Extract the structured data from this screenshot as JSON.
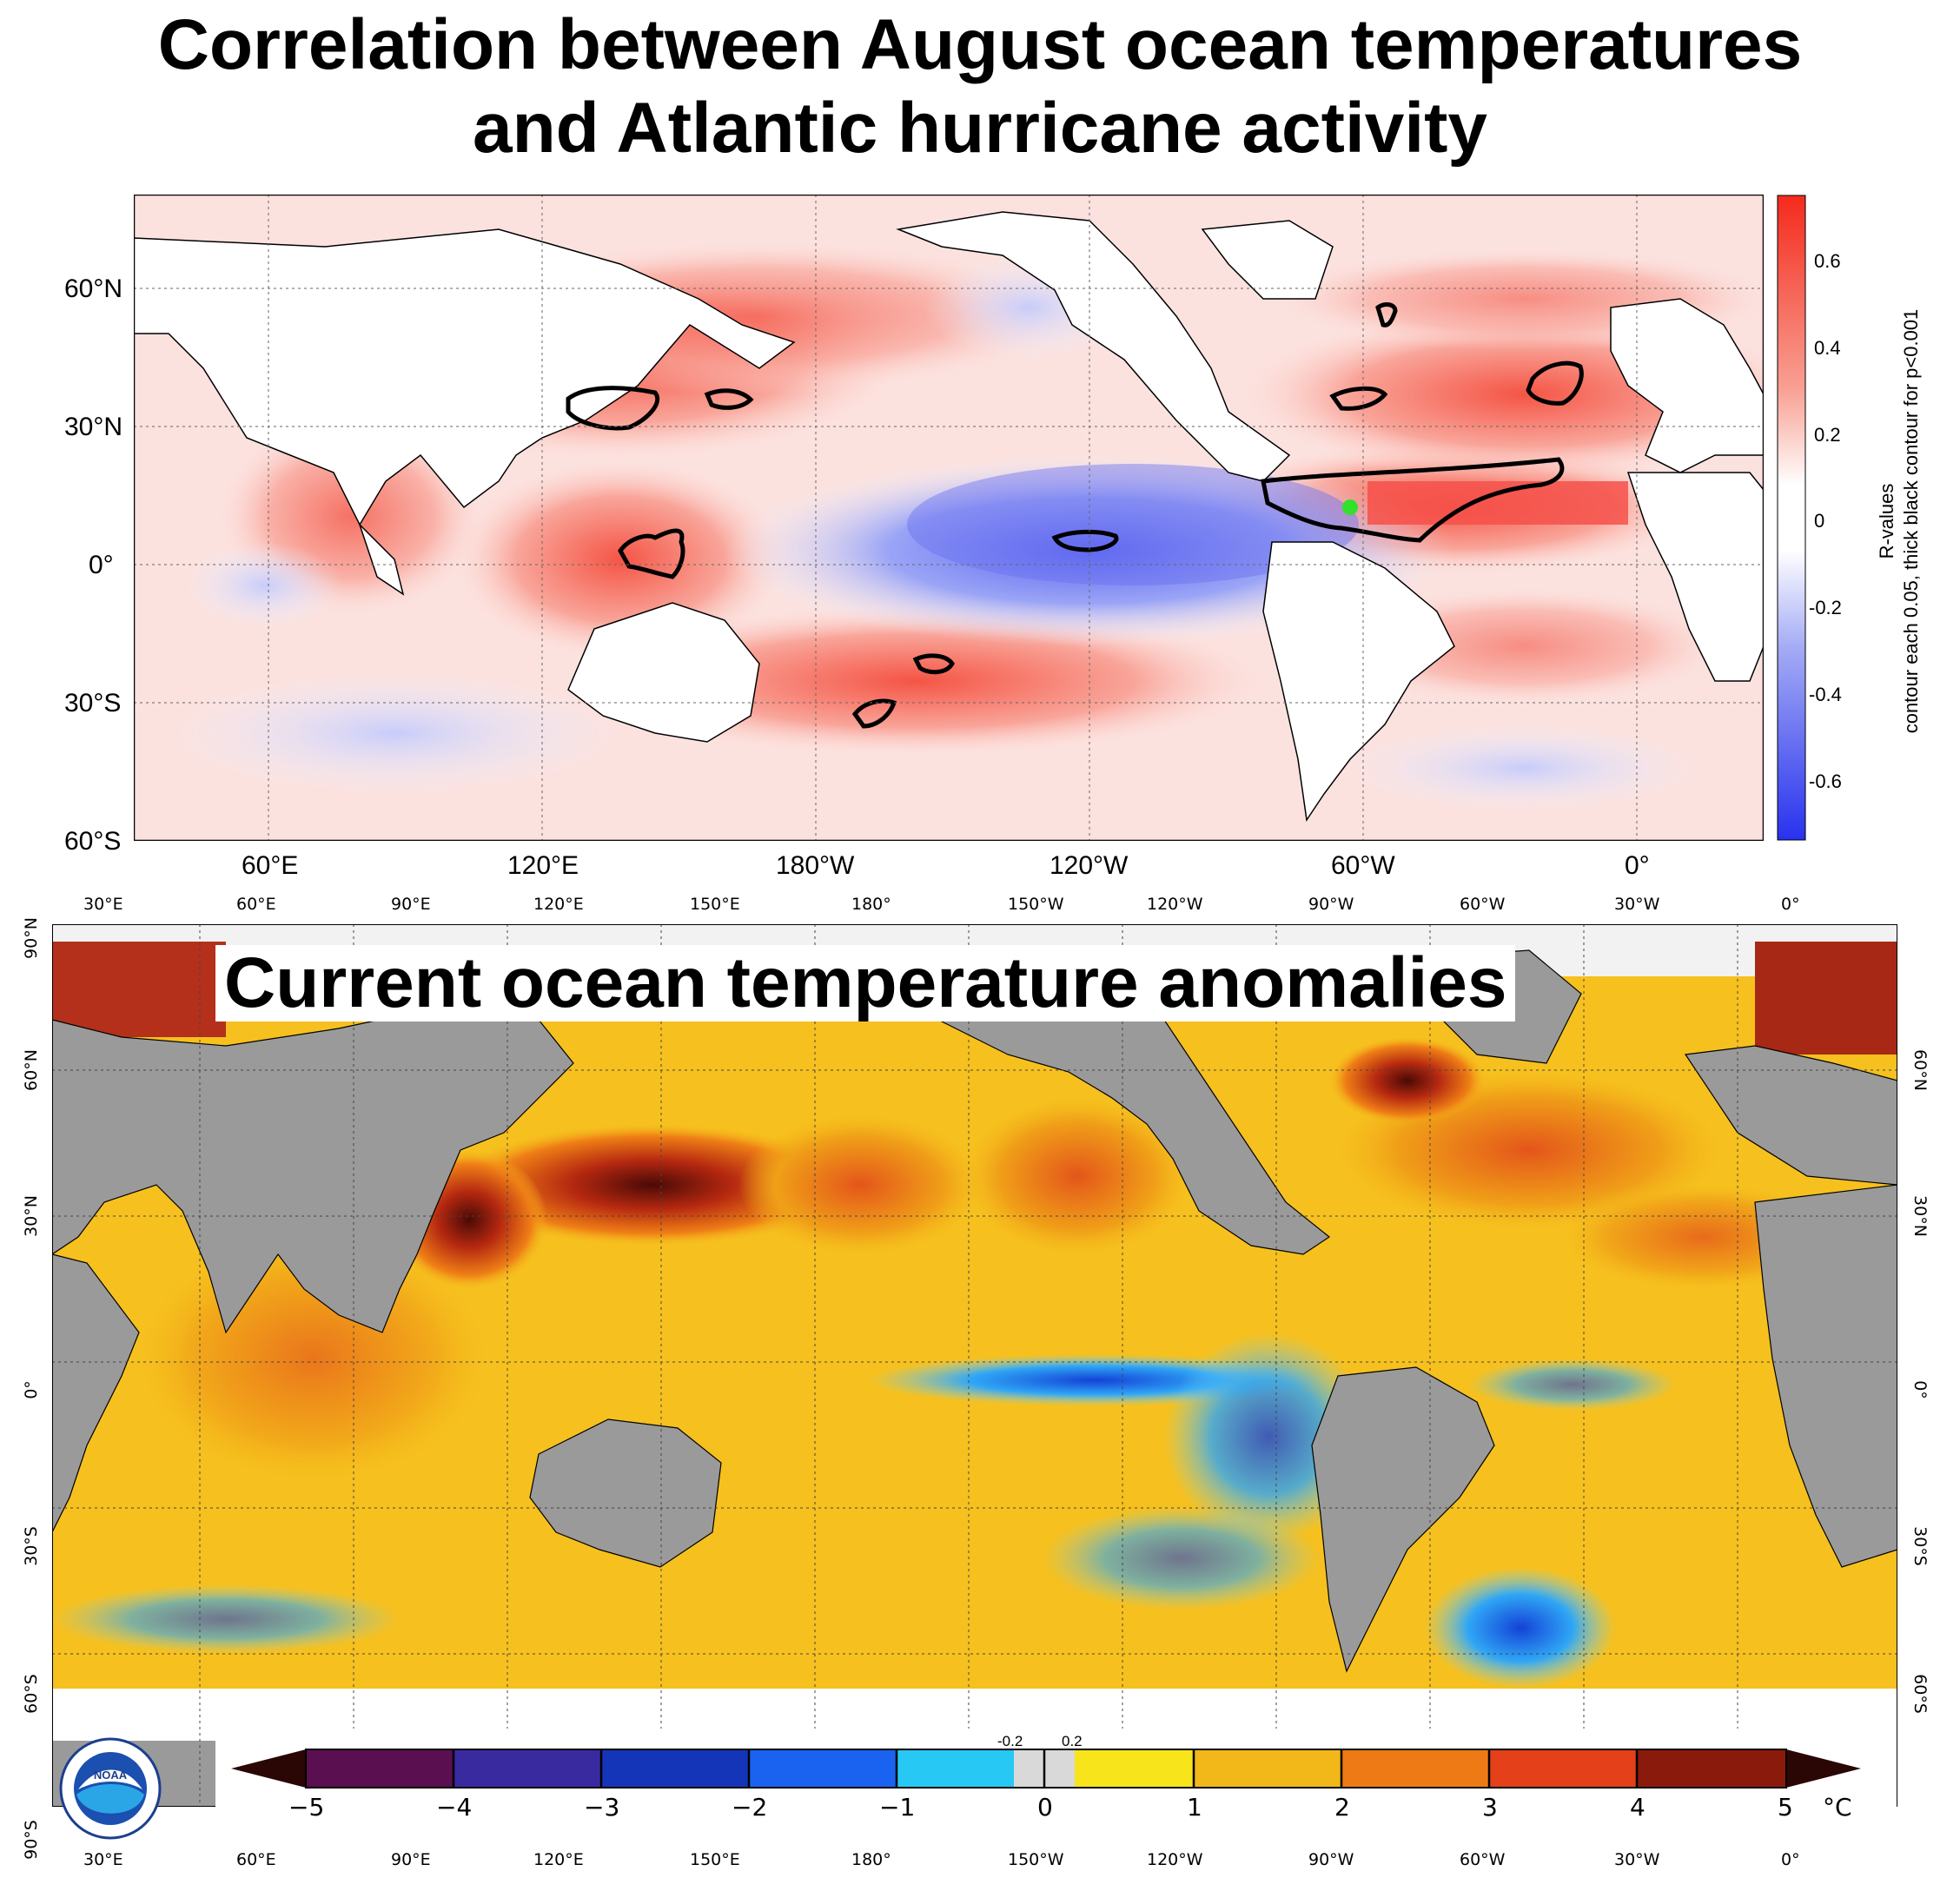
{
  "top": {
    "title_line1": "Correlation between August ocean temperatures",
    "title_line2": "and Atlantic hurricane activity",
    "lat_labels": [
      "60°N",
      "30°N",
      "0°",
      "30°S",
      "60°S"
    ],
    "lon_labels": [
      "60°E",
      "120°E",
      "180°W",
      "120°W",
      "60°W",
      "0°"
    ],
    "colorbar": {
      "ticks": [
        "0.6",
        "0.4",
        "0.2",
        "0",
        "-0.2",
        "-0.4",
        "-0.6"
      ],
      "label_line1": "R-values",
      "label_line2": "contour each 0.05, thick black contour for p<0.001",
      "colors": {
        "high": "#f42a1c",
        "mid": "#ffffff",
        "low": "#2832ee"
      }
    }
  },
  "bottom": {
    "title": "Current ocean temperature anomalies",
    "lon_labels": [
      "30°E",
      "60°E",
      "90°E",
      "120°E",
      "150°E",
      "180°",
      "150°W",
      "120°W",
      "90°W",
      "60°W",
      "30°W",
      "0°"
    ],
    "lat_labels_left": [
      "90°N",
      "60°N",
      "30°N",
      "0°",
      "30°S",
      "60°S",
      "90°S"
    ],
    "lat_labels_right": [
      "60°N",
      "30°N",
      "0°",
      "30°S",
      "60°S"
    ],
    "colorbar": {
      "ticks": [
        "−5",
        "−4",
        "−3",
        "−2",
        "−1",
        "0",
        "1",
        "2",
        "3",
        "4",
        "5"
      ],
      "small_ticks": [
        "-0.2",
        "0.2"
      ],
      "unit": "°C"
    },
    "logo_text": "NOAA",
    "colors": {
      "land": "#9a9a9a",
      "warm": "#f7c21a",
      "hot": "#c8421a",
      "cold": "#2a7df5"
    }
  }
}
